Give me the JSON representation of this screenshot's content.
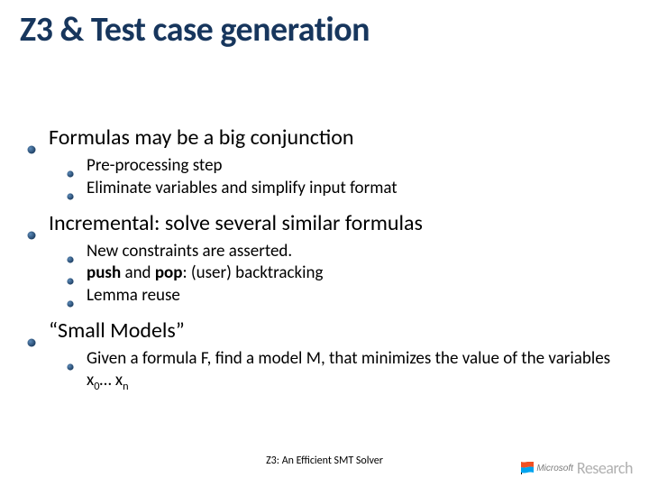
{
  "colors": {
    "title": "#17365d",
    "text": "#000000",
    "background": "#ffffff",
    "msr_gray": "#b0b0b0",
    "ms_gray": "#7a7a7a",
    "bullet_dark": "#1a3b5f",
    "bullet_light": "#5c8ab8"
  },
  "typography": {
    "title_fontsize": 38,
    "l1_fontsize": 24,
    "l2_fontsize": 19,
    "footer_fontsize": 12,
    "msr_research_fontsize": 18,
    "msr_microsoft_fontsize": 10
  },
  "title": "Z3 & Test case generation",
  "bullets": [
    {
      "text": "Formulas may be a big conjunction",
      "children": [
        {
          "text": "Pre-processing step"
        },
        {
          "text": "Eliminate variables and simplify input format"
        }
      ]
    },
    {
      "text": "Incremental: solve several similar formulas",
      "children": [
        {
          "text": "New constraints are asserted."
        },
        {
          "html": "<b>push</b> and <b>pop</b>: (user) backtracking"
        },
        {
          "text": "Lemma reuse"
        }
      ]
    },
    {
      "text": "“Small Models”",
      "children": [
        {
          "html": "Given a formula F, find a model M, that minimizes the value of the variables x<span class=\"sub\">0</span>… x<span class=\"sub\">n</span>"
        }
      ]
    }
  ],
  "footer": "Z3: An Efficient SMT Solver",
  "logo": {
    "microsoft": "Microsoft",
    "research": "Research"
  }
}
